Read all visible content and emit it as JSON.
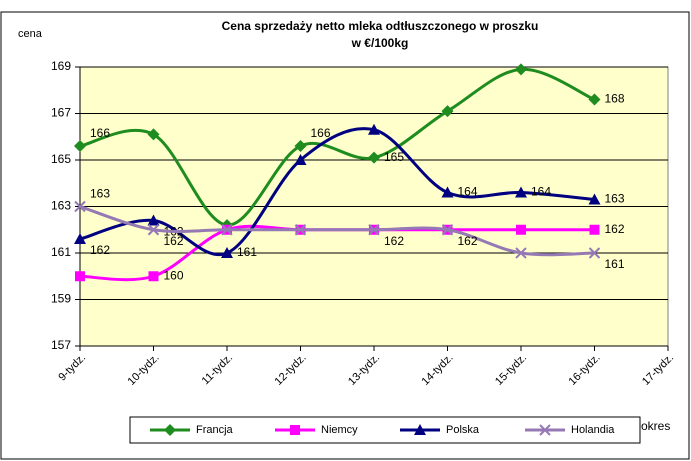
{
  "chart_data": {
    "type": "line",
    "title": [
      "Cena sprzedaży netto mleka odtłuszczonego w proszku",
      "w €/100kg"
    ],
    "ylabel": "cena",
    "xlabel": "okres",
    "categories": [
      "9-tydz.",
      "10-tydz.",
      "11-tydz.",
      "12-tydz.",
      "13-tydz.",
      "14-tydz.",
      "15-tydz.",
      "16-tydz.",
      "17-tydz."
    ],
    "series": [
      {
        "name": "Francja",
        "color": "#1e8c1e",
        "marker": "diamond",
        "values": [
          165.6,
          166.1,
          162.2,
          165.6,
          165.1,
          167.1,
          168.9,
          167.6,
          null
        ],
        "value_labels": [
          "166",
          null,
          null,
          "166",
          "165",
          null,
          null,
          "168",
          null
        ]
      },
      {
        "name": "Niemcy",
        "color": "#ff00ff",
        "marker": "square",
        "values": [
          160,
          160,
          162,
          162,
          162,
          162,
          162,
          162,
          null
        ],
        "value_labels": [
          null,
          "160",
          null,
          null,
          null,
          null,
          null,
          "162",
          null
        ]
      },
      {
        "name": "Polska",
        "color": "#000080",
        "marker": "triangle",
        "values": [
          161.6,
          162.4,
          161,
          165,
          166.3,
          163.6,
          163.6,
          163.3,
          null
        ],
        "value_labels": [
          "162",
          "162",
          "161",
          null,
          null,
          "164",
          "164",
          "163",
          null
        ]
      },
      {
        "name": "Holandia",
        "color": "#9479b4",
        "marker": "x",
        "values": [
          163,
          162,
          162,
          162,
          162,
          162,
          161,
          161,
          null
        ],
        "value_labels": [
          "163",
          "162",
          null,
          null,
          "162",
          "162",
          null,
          "161",
          null
        ]
      }
    ],
    "ylim": [
      157,
      169
    ],
    "yticks": [
      157,
      159,
      161,
      163,
      165,
      167,
      169
    ],
    "grid": true,
    "smooth": true,
    "background": "#ffffcc"
  }
}
